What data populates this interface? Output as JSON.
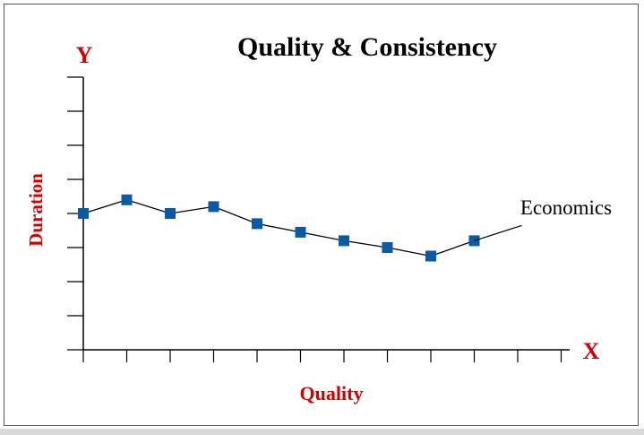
{
  "chart_data": {
    "type": "line",
    "title": "Quality & Consistency",
    "xlabel": "Quality",
    "ylabel": "Duration",
    "x_axis_letter": "X",
    "y_axis_letter": "Y",
    "series": [
      {
        "name": "Economics",
        "x": [
          0,
          1,
          2,
          3,
          4,
          5,
          6,
          7,
          8,
          9
        ],
        "values": [
          4.0,
          4.4,
          4.0,
          4.2,
          3.7,
          3.45,
          3.2,
          3.0,
          2.75,
          3.2
        ],
        "color": "#0a5aa6"
      }
    ],
    "xlim": [
      0,
      11
    ],
    "ylim": [
      0,
      8
    ],
    "grid": false,
    "tick_marks_only": true,
    "label_color": "#d40000",
    "title_color": "#000000"
  }
}
